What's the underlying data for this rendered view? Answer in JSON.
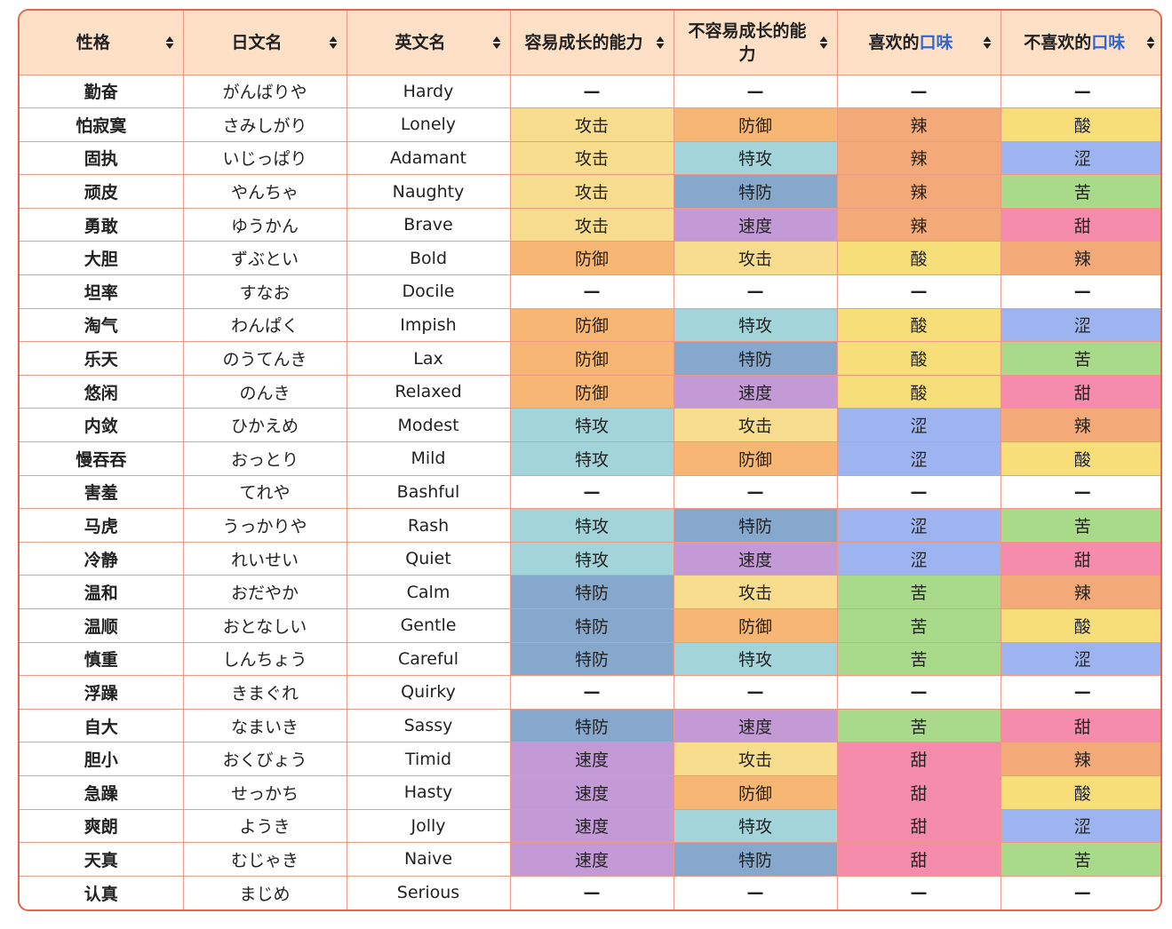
{
  "table": {
    "headers": [
      {
        "label": "性格"
      },
      {
        "label": "日文名"
      },
      {
        "label": "英文名"
      },
      {
        "label": "容易成长的能力"
      },
      {
        "label": "不容易成长的能力"
      },
      {
        "label_prefix": "喜欢的",
        "label_accent": "口味"
      },
      {
        "label_prefix": "不喜欢的",
        "label_accent": "口味"
      }
    ],
    "sort_icon": "sort-up-down-icon",
    "stat_colors": {
      "攻击": "#F8DD8F",
      "防御": "#F8B674",
      "特攻": "#A3D4D9",
      "特防": "#86A8CC",
      "速度": "#C39AD6",
      "—": "#FFFFFF"
    },
    "flavor_colors": {
      "辣": "#F4AA78",
      "酸": "#F7DE78",
      "涩": "#9DB4F1",
      "苦": "#A8DA8A",
      "甜": "#F68CAC",
      "—": "#FFFFFF"
    },
    "rows": [
      {
        "cn": "勤奋",
        "jp": "がんばりや",
        "en": "Hardy",
        "up": "—",
        "down": "—",
        "like": "—",
        "dislike": "—"
      },
      {
        "cn": "怕寂寞",
        "jp": "さみしがり",
        "en": "Lonely",
        "up": "攻击",
        "down": "防御",
        "like": "辣",
        "dislike": "酸"
      },
      {
        "cn": "固执",
        "jp": "いじっぱり",
        "en": "Adamant",
        "up": "攻击",
        "down": "特攻",
        "like": "辣",
        "dislike": "涩"
      },
      {
        "cn": "顽皮",
        "jp": "やんちゃ",
        "en": "Naughty",
        "up": "攻击",
        "down": "特防",
        "like": "辣",
        "dislike": "苦"
      },
      {
        "cn": "勇敢",
        "jp": "ゆうかん",
        "en": "Brave",
        "up": "攻击",
        "down": "速度",
        "like": "辣",
        "dislike": "甜"
      },
      {
        "cn": "大胆",
        "jp": "ずぶとい",
        "en": "Bold",
        "up": "防御",
        "down": "攻击",
        "like": "酸",
        "dislike": "辣"
      },
      {
        "cn": "坦率",
        "jp": "すなお",
        "en": "Docile",
        "up": "—",
        "down": "—",
        "like": "—",
        "dislike": "—"
      },
      {
        "cn": "淘气",
        "jp": "わんぱく",
        "en": "Impish",
        "up": "防御",
        "down": "特攻",
        "like": "酸",
        "dislike": "涩"
      },
      {
        "cn": "乐天",
        "jp": "のうてんき",
        "en": "Lax",
        "up": "防御",
        "down": "特防",
        "like": "酸",
        "dislike": "苦"
      },
      {
        "cn": "悠闲",
        "jp": "のんき",
        "en": "Relaxed",
        "up": "防御",
        "down": "速度",
        "like": "酸",
        "dislike": "甜"
      },
      {
        "cn": "内敛",
        "jp": "ひかえめ",
        "en": "Modest",
        "up": "特攻",
        "down": "攻击",
        "like": "涩",
        "dislike": "辣"
      },
      {
        "cn": "慢吞吞",
        "jp": "おっとり",
        "en": "Mild",
        "up": "特攻",
        "down": "防御",
        "like": "涩",
        "dislike": "酸"
      },
      {
        "cn": "害羞",
        "jp": "てれや",
        "en": "Bashful",
        "up": "—",
        "down": "—",
        "like": "—",
        "dislike": "—"
      },
      {
        "cn": "马虎",
        "jp": "うっかりや",
        "en": "Rash",
        "up": "特攻",
        "down": "特防",
        "like": "涩",
        "dislike": "苦"
      },
      {
        "cn": "冷静",
        "jp": "れいせい",
        "en": "Quiet",
        "up": "特攻",
        "down": "速度",
        "like": "涩",
        "dislike": "甜"
      },
      {
        "cn": "温和",
        "jp": "おだやか",
        "en": "Calm",
        "up": "特防",
        "down": "攻击",
        "like": "苦",
        "dislike": "辣"
      },
      {
        "cn": "温顺",
        "jp": "おとなしい",
        "en": "Gentle",
        "up": "特防",
        "down": "防御",
        "like": "苦",
        "dislike": "酸"
      },
      {
        "cn": "慎重",
        "jp": "しんちょう",
        "en": "Careful",
        "up": "特防",
        "down": "特攻",
        "like": "苦",
        "dislike": "涩"
      },
      {
        "cn": "浮躁",
        "jp": "きまぐれ",
        "en": "Quirky",
        "up": "—",
        "down": "—",
        "like": "—",
        "dislike": "—"
      },
      {
        "cn": "自大",
        "jp": "なまいき",
        "en": "Sassy",
        "up": "特防",
        "down": "速度",
        "like": "苦",
        "dislike": "甜"
      },
      {
        "cn": "胆小",
        "jp": "おくびょう",
        "en": "Timid",
        "up": "速度",
        "down": "攻击",
        "like": "甜",
        "dislike": "辣"
      },
      {
        "cn": "急躁",
        "jp": "せっかち",
        "en": "Hasty",
        "up": "速度",
        "down": "防御",
        "like": "甜",
        "dislike": "酸"
      },
      {
        "cn": "爽朗",
        "jp": "ようき",
        "en": "Jolly",
        "up": "速度",
        "down": "特攻",
        "like": "甜",
        "dislike": "涩"
      },
      {
        "cn": "天真",
        "jp": "むじゃき",
        "en": "Naive",
        "up": "速度",
        "down": "特防",
        "like": "甜",
        "dislike": "苦"
      },
      {
        "cn": "认真",
        "jp": "まじめ",
        "en": "Serious",
        "up": "—",
        "down": "—",
        "like": "—",
        "dislike": "—"
      }
    ]
  }
}
